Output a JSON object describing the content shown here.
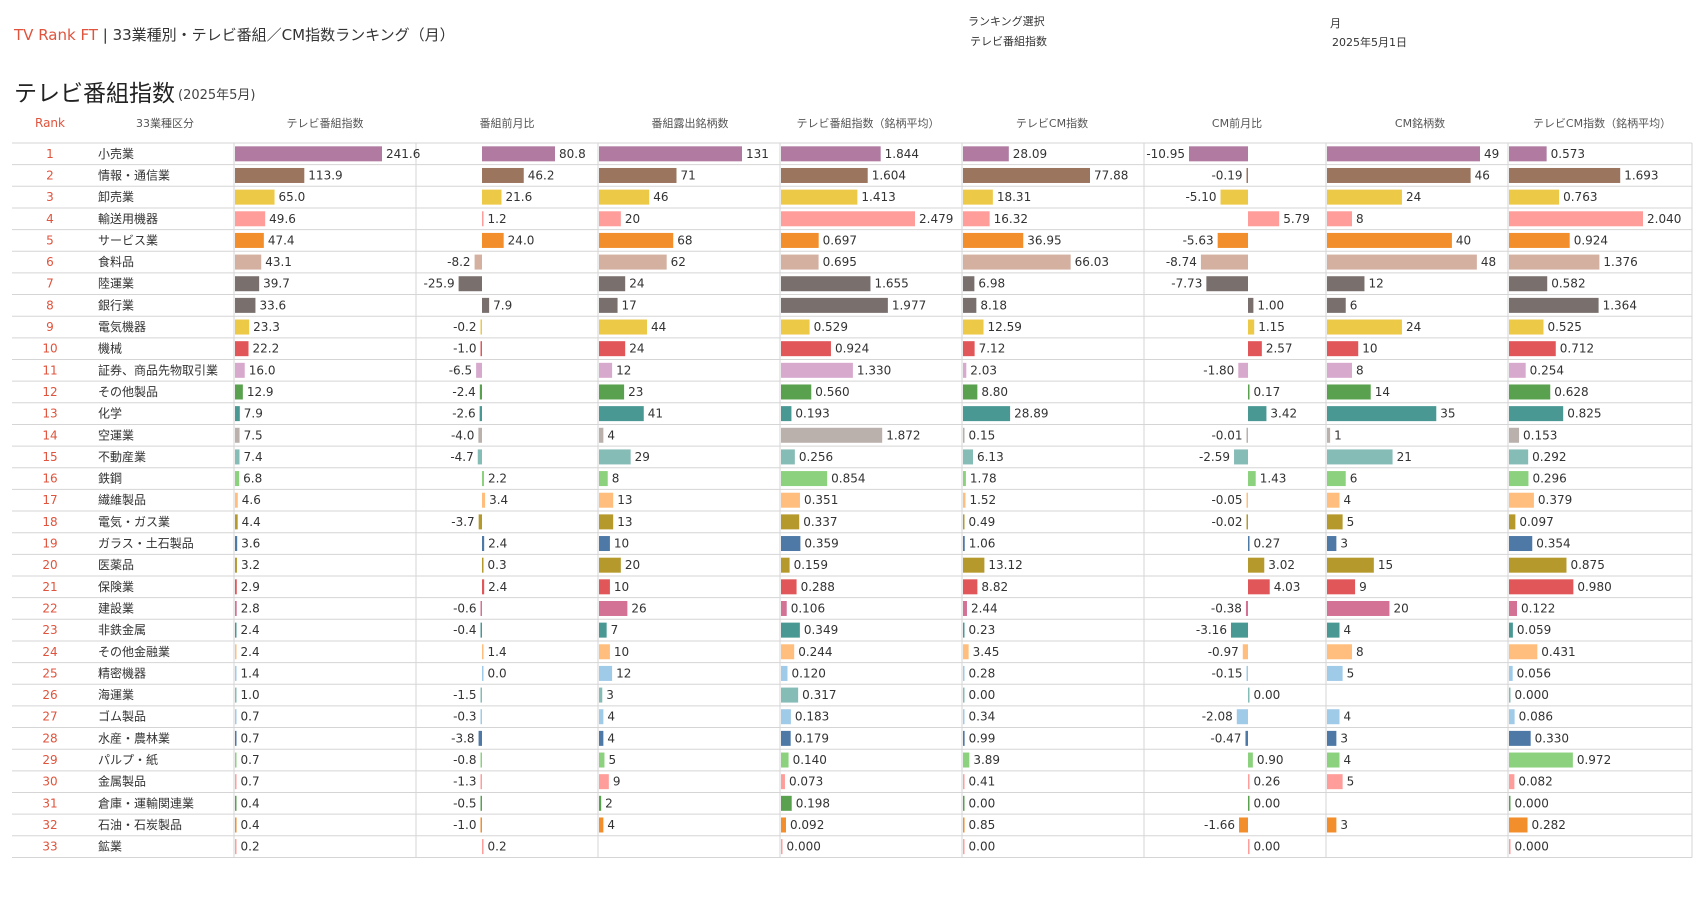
{
  "header": {
    "brand": "TV Rank FT",
    "separator": " | ",
    "title": "33業種別・テレビ番組／CM指数ランキング（月）",
    "ranking_select_label": "ランキング選択",
    "ranking_select_value": "テレビ番組指数",
    "period_label": "月",
    "period_value": "2025年5月1日"
  },
  "page": {
    "title": "テレビ番組指数",
    "subtitle": "(2025年5月)"
  },
  "colors": {
    "rank_text": "#e0533c",
    "grid_line": "#d5d5d5"
  },
  "chart_data": {
    "type": "table",
    "columns": [
      "Rank",
      "33業種区分",
      "テレビ番組指数",
      "番組前月比",
      "番組露出銘柄数",
      "テレビ番組指数（銘柄平均）",
      "テレビCM指数",
      "CM前月比",
      "CM銘柄数",
      "テレビCM指数（銘柄平均）"
    ],
    "rows": [
      {
        "rank": "1",
        "industry": "小売業",
        "color": "#b07aa1",
        "tv_index": "241.6",
        "tv_mom": "80.8",
        "exposure": "131",
        "tv_avg": "1.844",
        "cm_index": "28.09",
        "cm_mom": "-10.95",
        "cm_brands": "49",
        "cm_avg": "0.573"
      },
      {
        "rank": "2",
        "industry": "情報・通信業",
        "color": "#9c755f",
        "tv_index": "113.9",
        "tv_mom": "46.2",
        "exposure": "71",
        "tv_avg": "1.604",
        "cm_index": "77.88",
        "cm_mom": "-0.19",
        "cm_brands": "46",
        "cm_avg": "1.693"
      },
      {
        "rank": "3",
        "industry": "卸売業",
        "color": "#edc948",
        "tv_index": "65.0",
        "tv_mom": "21.6",
        "exposure": "46",
        "tv_avg": "1.413",
        "cm_index": "18.31",
        "cm_mom": "-5.10",
        "cm_brands": "24",
        "cm_avg": "0.763"
      },
      {
        "rank": "4",
        "industry": "輸送用機器",
        "color": "#ff9d9a",
        "tv_index": "49.6",
        "tv_mom": "1.2",
        "exposure": "20",
        "tv_avg": "2.479",
        "cm_index": "16.32",
        "cm_mom": "5.79",
        "cm_brands": "8",
        "cm_avg": "2.040"
      },
      {
        "rank": "5",
        "industry": "サービス業",
        "color": "#f28e2b",
        "tv_index": "47.4",
        "tv_mom": "24.0",
        "exposure": "68",
        "tv_avg": "0.697",
        "cm_index": "36.95",
        "cm_mom": "-5.63",
        "cm_brands": "40",
        "cm_avg": "0.924"
      },
      {
        "rank": "6",
        "industry": "食料品",
        "color": "#d4b0a1",
        "tv_index": "43.1",
        "tv_mom": "-8.2",
        "exposure": "62",
        "tv_avg": "0.695",
        "cm_index": "66.03",
        "cm_mom": "-8.74",
        "cm_brands": "48",
        "cm_avg": "1.376"
      },
      {
        "rank": "7",
        "industry": "陸運業",
        "color": "#79706e",
        "tv_index": "39.7",
        "tv_mom": "-25.9",
        "exposure": "24",
        "tv_avg": "1.655",
        "cm_index": "6.98",
        "cm_mom": "-7.73",
        "cm_brands": "12",
        "cm_avg": "0.582"
      },
      {
        "rank": "8",
        "industry": "銀行業",
        "color": "#79706e",
        "tv_index": "33.6",
        "tv_mom": "7.9",
        "exposure": "17",
        "tv_avg": "1.977",
        "cm_index": "8.18",
        "cm_mom": "1.00",
        "cm_brands": "6",
        "cm_avg": "1.364"
      },
      {
        "rank": "9",
        "industry": "電気機器",
        "color": "#edc948",
        "tv_index": "23.3",
        "tv_mom": "-0.2",
        "exposure": "44",
        "tv_avg": "0.529",
        "cm_index": "12.59",
        "cm_mom": "1.15",
        "cm_brands": "24",
        "cm_avg": "0.525"
      },
      {
        "rank": "10",
        "industry": "機械",
        "color": "#e15759",
        "tv_index": "22.2",
        "tv_mom": "-1.0",
        "exposure": "24",
        "tv_avg": "0.924",
        "cm_index": "7.12",
        "cm_mom": "2.57",
        "cm_brands": "10",
        "cm_avg": "0.712"
      },
      {
        "rank": "11",
        "industry": "証券、商品先物取引業",
        "color": "#d7a9cd",
        "tv_index": "16.0",
        "tv_mom": "-6.5",
        "exposure": "12",
        "tv_avg": "1.330",
        "cm_index": "2.03",
        "cm_mom": "-1.80",
        "cm_brands": "8",
        "cm_avg": "0.254"
      },
      {
        "rank": "12",
        "industry": "その他製品",
        "color": "#59a14f",
        "tv_index": "12.9",
        "tv_mom": "-2.4",
        "exposure": "23",
        "tv_avg": "0.560",
        "cm_index": "8.80",
        "cm_mom": "0.17",
        "cm_brands": "14",
        "cm_avg": "0.628"
      },
      {
        "rank": "13",
        "industry": "化学",
        "color": "#499894",
        "tv_index": "7.9",
        "tv_mom": "-2.6",
        "exposure": "41",
        "tv_avg": "0.193",
        "cm_index": "28.89",
        "cm_mom": "3.42",
        "cm_brands": "35",
        "cm_avg": "0.825"
      },
      {
        "rank": "14",
        "industry": "空運業",
        "color": "#bab0ac",
        "tv_index": "7.5",
        "tv_mom": "-4.0",
        "exposure": "4",
        "tv_avg": "1.872",
        "cm_index": "0.15",
        "cm_mom": "-0.01",
        "cm_brands": "1",
        "cm_avg": "0.153"
      },
      {
        "rank": "15",
        "industry": "不動産業",
        "color": "#86bcb6",
        "tv_index": "7.4",
        "tv_mom": "-4.7",
        "exposure": "29",
        "tv_avg": "0.256",
        "cm_index": "6.13",
        "cm_mom": "-2.59",
        "cm_brands": "21",
        "cm_avg": "0.292"
      },
      {
        "rank": "16",
        "industry": "鉄鋼",
        "color": "#8cd17d",
        "tv_index": "6.8",
        "tv_mom": "2.2",
        "exposure": "8",
        "tv_avg": "0.854",
        "cm_index": "1.78",
        "cm_mom": "1.43",
        "cm_brands": "6",
        "cm_avg": "0.296"
      },
      {
        "rank": "17",
        "industry": "繊維製品",
        "color": "#ffbe7d",
        "tv_index": "4.6",
        "tv_mom": "3.4",
        "exposure": "13",
        "tv_avg": "0.351",
        "cm_index": "1.52",
        "cm_mom": "-0.05",
        "cm_brands": "4",
        "cm_avg": "0.379"
      },
      {
        "rank": "18",
        "industry": "電気・ガス業",
        "color": "#b6992d",
        "tv_index": "4.4",
        "tv_mom": "-3.7",
        "exposure": "13",
        "tv_avg": "0.337",
        "cm_index": "0.49",
        "cm_mom": "-0.02",
        "cm_brands": "5",
        "cm_avg": "0.097"
      },
      {
        "rank": "19",
        "industry": "ガラス・土石製品",
        "color": "#4e79a7",
        "tv_index": "3.6",
        "tv_mom": "2.4",
        "exposure": "10",
        "tv_avg": "0.359",
        "cm_index": "1.06",
        "cm_mom": "0.27",
        "cm_brands": "3",
        "cm_avg": "0.354"
      },
      {
        "rank": "20",
        "industry": "医薬品",
        "color": "#b6992d",
        "tv_index": "3.2",
        "tv_mom": "0.3",
        "exposure": "20",
        "tv_avg": "0.159",
        "cm_index": "13.12",
        "cm_mom": "3.02",
        "cm_brands": "15",
        "cm_avg": "0.875"
      },
      {
        "rank": "21",
        "industry": "保険業",
        "color": "#e15759",
        "tv_index": "2.9",
        "tv_mom": "2.4",
        "exposure": "10",
        "tv_avg": "0.288",
        "cm_index": "8.82",
        "cm_mom": "4.03",
        "cm_brands": "9",
        "cm_avg": "0.980"
      },
      {
        "rank": "22",
        "industry": "建設業",
        "color": "#d37295",
        "tv_index": "2.8",
        "tv_mom": "-0.6",
        "exposure": "26",
        "tv_avg": "0.106",
        "cm_index": "2.44",
        "cm_mom": "-0.38",
        "cm_brands": "20",
        "cm_avg": "0.122"
      },
      {
        "rank": "23",
        "industry": "非鉄金属",
        "color": "#499894",
        "tv_index": "2.4",
        "tv_mom": "-0.4",
        "exposure": "7",
        "tv_avg": "0.349",
        "cm_index": "0.23",
        "cm_mom": "-3.16",
        "cm_brands": "4",
        "cm_avg": "0.059"
      },
      {
        "rank": "24",
        "industry": "その他金融業",
        "color": "#ffbe7d",
        "tv_index": "2.4",
        "tv_mom": "1.4",
        "exposure": "10",
        "tv_avg": "0.244",
        "cm_index": "3.45",
        "cm_mom": "-0.97",
        "cm_brands": "8",
        "cm_avg": "0.431"
      },
      {
        "rank": "25",
        "industry": "精密機器",
        "color": "#a0cbe8",
        "tv_index": "1.4",
        "tv_mom": "0.0",
        "exposure": "12",
        "tv_avg": "0.120",
        "cm_index": "0.28",
        "cm_mom": "-0.15",
        "cm_brands": "5",
        "cm_avg": "0.056"
      },
      {
        "rank": "26",
        "industry": "海運業",
        "color": "#86bcb6",
        "tv_index": "1.0",
        "tv_mom": "-1.5",
        "exposure": "3",
        "tv_avg": "0.317",
        "cm_index": "0.00",
        "cm_mom": "0.00",
        "cm_brands": "",
        "cm_avg": "0.000"
      },
      {
        "rank": "27",
        "industry": "ゴム製品",
        "color": "#a0cbe8",
        "tv_index": "0.7",
        "tv_mom": "-0.3",
        "exposure": "4",
        "tv_avg": "0.183",
        "cm_index": "0.34",
        "cm_mom": "-2.08",
        "cm_brands": "4",
        "cm_avg": "0.086"
      },
      {
        "rank": "28",
        "industry": "水産・農林業",
        "color": "#4e79a7",
        "tv_index": "0.7",
        "tv_mom": "-3.8",
        "exposure": "4",
        "tv_avg": "0.179",
        "cm_index": "0.99",
        "cm_mom": "-0.47",
        "cm_brands": "3",
        "cm_avg": "0.330"
      },
      {
        "rank": "29",
        "industry": "パルプ・紙",
        "color": "#8cd17d",
        "tv_index": "0.7",
        "tv_mom": "-0.8",
        "exposure": "5",
        "tv_avg": "0.140",
        "cm_index": "3.89",
        "cm_mom": "0.90",
        "cm_brands": "4",
        "cm_avg": "0.972"
      },
      {
        "rank": "30",
        "industry": "金属製品",
        "color": "#ff9d9a",
        "tv_index": "0.7",
        "tv_mom": "-1.3",
        "exposure": "9",
        "tv_avg": "0.073",
        "cm_index": "0.41",
        "cm_mom": "0.26",
        "cm_brands": "5",
        "cm_avg": "0.082"
      },
      {
        "rank": "31",
        "industry": "倉庫・運輸関連業",
        "color": "#59a14f",
        "tv_index": "0.4",
        "tv_mom": "-0.5",
        "exposure": "2",
        "tv_avg": "0.198",
        "cm_index": "0.00",
        "cm_mom": "0.00",
        "cm_brands": "",
        "cm_avg": "0.000"
      },
      {
        "rank": "32",
        "industry": "石油・石炭製品",
        "color": "#f28e2b",
        "tv_index": "0.4",
        "tv_mom": "-1.0",
        "exposure": "4",
        "tv_avg": "0.092",
        "cm_index": "0.85",
        "cm_mom": "-1.66",
        "cm_brands": "3",
        "cm_avg": "0.282"
      },
      {
        "rank": "33",
        "industry": "鉱業",
        "color": "#ff9d9a",
        "tv_index": "0.2",
        "tv_mom": "0.2",
        "exposure": "",
        "tv_avg": "0.000",
        "cm_index": "0.00",
        "cm_mom": "0.00",
        "cm_brands": "",
        "cm_avg": "0.000"
      }
    ]
  }
}
